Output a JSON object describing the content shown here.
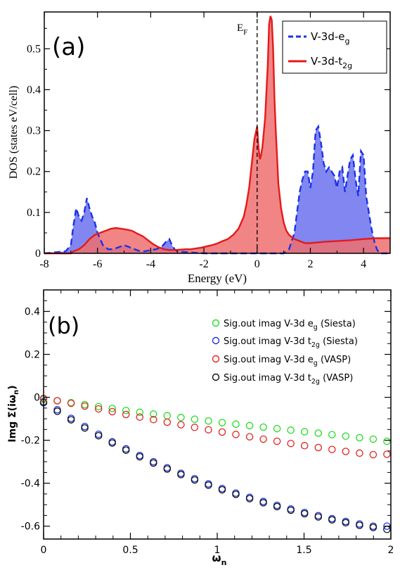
{
  "chart_data": [
    {
      "type": "area",
      "panel_label": "(a)",
      "xlabel": "Energy (eV)",
      "ylabel": "DOS (states eV/cell)",
      "xlim": [
        -8,
        5
      ],
      "ylim": [
        0,
        0.59
      ],
      "xticks": [
        "-8",
        "-6",
        "-4",
        "-2",
        "0",
        "2",
        "4"
      ],
      "yticks": [
        "0",
        "0.1",
        "0.2",
        "0.3",
        "0.4",
        "0.5"
      ],
      "fermi_label": "E",
      "fermi_sub": "F",
      "fermi_energy": 0,
      "legend_position": "top-right",
      "series": [
        {
          "name": "V-3d-e",
          "name_sub": "g",
          "color": "#1a33e6",
          "fill": "#7b7ff0",
          "style": "dashed",
          "x": [
            -8,
            -7.2,
            -7.0,
            -6.9,
            -6.8,
            -6.7,
            -6.6,
            -6.5,
            -6.4,
            -6.3,
            -6.2,
            -6.1,
            -6.0,
            -5.9,
            -5.8,
            -5.6,
            -5.4,
            -5.2,
            -5.0,
            -4.8,
            -4.6,
            -4.4,
            -4.2,
            -4.0,
            -3.8,
            -3.6,
            -3.4,
            -3.3,
            -3.2,
            -3.1,
            -3.0,
            -2.5,
            -2.0,
            -1.0,
            0.0,
            1.0,
            1.2,
            1.4,
            1.5,
            1.6,
            1.7,
            1.8,
            1.9,
            2.0,
            2.1,
            2.2,
            2.3,
            2.4,
            2.5,
            2.6,
            2.7,
            2.8,
            2.9,
            3.0,
            3.1,
            3.2,
            3.3,
            3.4,
            3.5,
            3.6,
            3.7,
            3.8,
            3.9,
            4.0,
            4.1,
            4.2,
            4.3,
            4.4,
            4.5,
            4.6,
            4.8,
            5.0
          ],
          "y": [
            0.0,
            0.005,
            0.02,
            0.07,
            0.11,
            0.09,
            0.08,
            0.1,
            0.135,
            0.11,
            0.09,
            0.075,
            0.05,
            0.035,
            0.02,
            0.01,
            0.01,
            0.015,
            0.02,
            0.015,
            0.01,
            0.005,
            0.005,
            0.008,
            0.01,
            0.015,
            0.03,
            0.035,
            0.02,
            0.01,
            0.005,
            0.002,
            0.0,
            0.0,
            0.0,
            0.0,
            0.01,
            0.05,
            0.1,
            0.15,
            0.18,
            0.2,
            0.2,
            0.16,
            0.2,
            0.3,
            0.31,
            0.27,
            0.22,
            0.2,
            0.21,
            0.2,
            0.19,
            0.16,
            0.2,
            0.21,
            0.15,
            0.19,
            0.23,
            0.24,
            0.18,
            0.14,
            0.25,
            0.24,
            0.14,
            0.1,
            0.06,
            0.03,
            0.01,
            0.0,
            0.0,
            0.0
          ]
        },
        {
          "name": "V-3d-t",
          "name_sub": "2g",
          "color": "#e41a1a",
          "fill": "#ee6e6e",
          "style": "solid",
          "x": [
            -8,
            -7.0,
            -6.9,
            -6.7,
            -6.5,
            -6.3,
            -6.1,
            -5.9,
            -5.7,
            -5.5,
            -5.3,
            -5.1,
            -4.9,
            -4.7,
            -4.5,
            -4.3,
            -4.1,
            -3.9,
            -3.7,
            -3.5,
            -3.3,
            -3.1,
            -2.9,
            -2.7,
            -2.5,
            -2.3,
            -2.1,
            -1.9,
            -1.7,
            -1.5,
            -1.3,
            -1.1,
            -0.9,
            -0.7,
            -0.5,
            -0.4,
            -0.3,
            -0.2,
            -0.1,
            0.0,
            0.05,
            0.1,
            0.15,
            0.2,
            0.3,
            0.4,
            0.45,
            0.5,
            0.55,
            0.6,
            0.65,
            0.7,
            0.8,
            0.9,
            1.0,
            1.1,
            1.2,
            1.4,
            1.6,
            1.8,
            2.0,
            2.5,
            3.0,
            3.5,
            4.0,
            4.5,
            5.0
          ],
          "y": [
            0.0,
            0.0,
            0.005,
            0.01,
            0.02,
            0.035,
            0.045,
            0.05,
            0.055,
            0.06,
            0.062,
            0.06,
            0.058,
            0.055,
            0.048,
            0.042,
            0.032,
            0.022,
            0.015,
            0.01,
            0.008,
            0.008,
            0.009,
            0.01,
            0.01,
            0.012,
            0.014,
            0.017,
            0.02,
            0.024,
            0.03,
            0.035,
            0.045,
            0.06,
            0.09,
            0.12,
            0.16,
            0.22,
            0.28,
            0.31,
            0.26,
            0.23,
            0.24,
            0.26,
            0.33,
            0.46,
            0.56,
            0.58,
            0.57,
            0.5,
            0.38,
            0.3,
            0.17,
            0.11,
            0.075,
            0.055,
            0.045,
            0.035,
            0.03,
            0.025,
            0.025,
            0.028,
            0.03,
            0.032,
            0.035,
            0.037,
            0.037
          ]
        }
      ]
    },
    {
      "type": "scatter",
      "panel_label": "(b)",
      "xlabel": "ω",
      "xlabel_sub": "n",
      "ylabel": "Img Σ(iω",
      "ylabel_sub": "n",
      "ylabel_end": ")",
      "xlim": [
        0,
        2
      ],
      "ylim": [
        -0.66,
        0.5
      ],
      "xticks": [
        "0",
        "0.5",
        "1",
        "1.5",
        "2"
      ],
      "yticks": [
        "0.4",
        "0.2",
        "0",
        "-0.2",
        "-0.4",
        "-0.6"
      ],
      "legend_position": "top-right",
      "x": [
        0.0,
        0.0791,
        0.1582,
        0.2373,
        0.3164,
        0.3955,
        0.4746,
        0.5537,
        0.6328,
        0.7119,
        0.791,
        0.8701,
        0.9492,
        1.0283,
        1.1074,
        1.1865,
        1.2656,
        1.3447,
        1.4238,
        1.5029,
        1.582,
        1.6611,
        1.7402,
        1.8193,
        1.8984,
        1.9775
      ],
      "series": [
        {
          "name": "Sig.out imag V-3d e",
          "name_sub": "g",
          "name_end": " (Siesta)",
          "color": "#22dd22",
          "values": [
            -0.01,
            -0.016,
            -0.025,
            -0.034,
            -0.043,
            -0.052,
            -0.061,
            -0.07,
            -0.078,
            -0.086,
            -0.094,
            -0.102,
            -0.11,
            -0.118,
            -0.125,
            -0.132,
            -0.139,
            -0.146,
            -0.153,
            -0.16,
            -0.167,
            -0.174,
            -0.181,
            -0.188,
            -0.195,
            -0.205
          ]
        },
        {
          "name": "Sig.out imag V-3d t",
          "name_sub": "2g",
          "name_end": " (Siesta)",
          "color": "#1f33e6",
          "values": [
            -0.02,
            -0.058,
            -0.098,
            -0.136,
            -0.172,
            -0.207,
            -0.24,
            -0.271,
            -0.3,
            -0.328,
            -0.354,
            -0.379,
            -0.403,
            -0.425,
            -0.446,
            -0.466,
            -0.485,
            -0.503,
            -0.52,
            -0.536,
            -0.551,
            -0.565,
            -0.578,
            -0.59,
            -0.6,
            -0.6
          ]
        },
        {
          "name": "Sig.out imag V-3d e",
          "name_sub": "g",
          "name_end": " (VASP)",
          "color": "#e62222",
          "values": [
            -0.005,
            -0.016,
            -0.028,
            -0.041,
            -0.054,
            -0.067,
            -0.08,
            -0.092,
            -0.104,
            -0.116,
            -0.128,
            -0.14,
            -0.151,
            -0.162,
            -0.173,
            -0.184,
            -0.195,
            -0.205,
            -0.215,
            -0.225,
            -0.234,
            -0.243,
            -0.252,
            -0.26,
            -0.267,
            -0.265
          ]
        },
        {
          "name": "Sig.out imag V-3d t",
          "name_sub": "2g",
          "name_end": " (VASP)",
          "color": "#111111",
          "values": [
            -0.025,
            -0.065,
            -0.105,
            -0.143,
            -0.179,
            -0.213,
            -0.246,
            -0.277,
            -0.306,
            -0.334,
            -0.36,
            -0.385,
            -0.409,
            -0.431,
            -0.452,
            -0.472,
            -0.491,
            -0.509,
            -0.526,
            -0.542,
            -0.557,
            -0.571,
            -0.584,
            -0.596,
            -0.606,
            -0.615
          ]
        }
      ]
    }
  ]
}
